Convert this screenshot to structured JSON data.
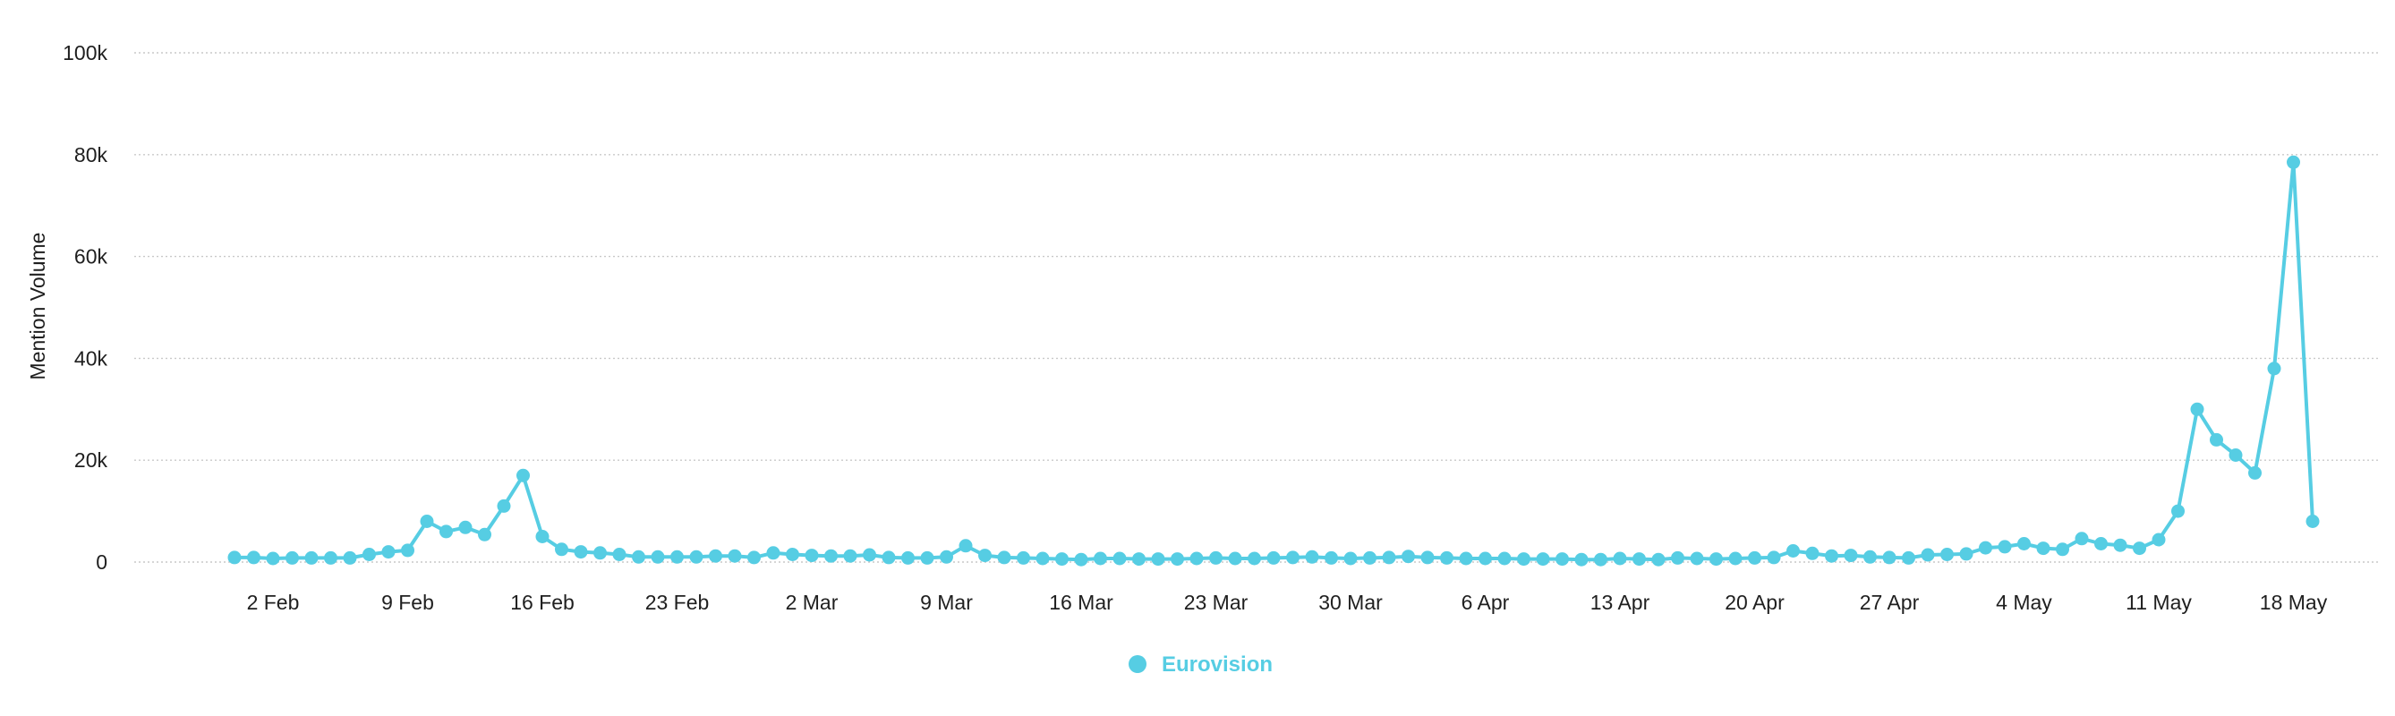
{
  "chart_data": {
    "type": "line",
    "title": "",
    "xlabel": "",
    "ylabel": "Mention Volume",
    "ylim": [
      0,
      100000
    ],
    "y_ticks": [
      0,
      20000,
      40000,
      60000,
      80000,
      100000
    ],
    "y_tick_labels": [
      "0",
      "20k",
      "40k",
      "60k",
      "80k",
      "100k"
    ],
    "x_start": "2025-01-31",
    "x_ticks": [
      {
        "date": "2025-02-02",
        "label": "2 Feb"
      },
      {
        "date": "2025-02-09",
        "label": "9 Feb"
      },
      {
        "date": "2025-02-16",
        "label": "16 Feb"
      },
      {
        "date": "2025-02-23",
        "label": "23 Feb"
      },
      {
        "date": "2025-03-02",
        "label": "2 Mar"
      },
      {
        "date": "2025-03-09",
        "label": "9 Mar"
      },
      {
        "date": "2025-03-16",
        "label": "16 Mar"
      },
      {
        "date": "2025-03-23",
        "label": "23 Mar"
      },
      {
        "date": "2025-03-30",
        "label": "30 Mar"
      },
      {
        "date": "2025-04-06",
        "label": "6 Apr"
      },
      {
        "date": "2025-04-13",
        "label": "13 Apr"
      },
      {
        "date": "2025-04-20",
        "label": "20 Apr"
      },
      {
        "date": "2025-04-27",
        "label": "27 Apr"
      },
      {
        "date": "2025-05-04",
        "label": "4 May"
      },
      {
        "date": "2025-05-11",
        "label": "11 May"
      },
      {
        "date": "2025-05-18",
        "label": "18 May"
      }
    ],
    "grid": true,
    "legend_position": "bottom-center",
    "series": [
      {
        "name": "Eurovision",
        "color": "#56cde3",
        "values": [
          900,
          900,
          700,
          800,
          800,
          800,
          800,
          1500,
          2000,
          2300,
          8000,
          6000,
          6800,
          5400,
          11000,
          17000,
          5000,
          2500,
          2000,
          1800,
          1500,
          1000,
          1000,
          1000,
          1000,
          1200,
          1200,
          900,
          1800,
          1500,
          1300,
          1200,
          1200,
          1400,
          900,
          800,
          800,
          1000,
          3200,
          1300,
          900,
          800,
          700,
          600,
          500,
          700,
          700,
          600,
          600,
          600,
          700,
          800,
          700,
          700,
          800,
          900,
          1000,
          800,
          700,
          800,
          900,
          1100,
          900,
          800,
          700,
          700,
          700,
          600,
          600,
          600,
          500,
          500,
          700,
          600,
          500,
          800,
          700,
          600,
          700,
          800,
          900,
          2200,
          1700,
          1200,
          1300,
          1000,
          900,
          800,
          1400,
          1500,
          1600,
          2800,
          3000,
          3600,
          2700,
          2500,
          4600,
          3600,
          3300,
          2700,
          4400,
          10000,
          30000,
          24000,
          21000,
          17500,
          38000,
          78500,
          8000
        ]
      }
    ]
  }
}
